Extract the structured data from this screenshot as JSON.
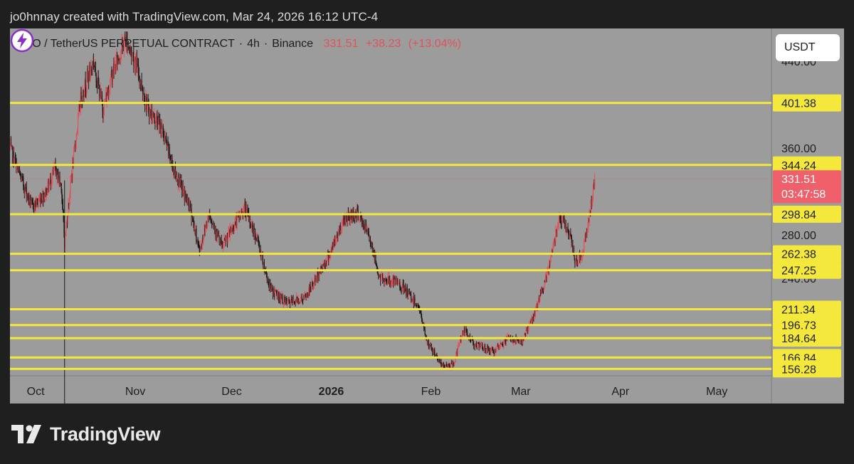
{
  "credit": "jo0hnnay created with TradingView.com, Mar 24, 2026 16:12 UTC-4",
  "legend": {
    "symbol": "TAO / TetherUS PERPETUAL CONTRACT",
    "interval": "4h",
    "exchange": "Binance",
    "last": "331.51",
    "change": "+38.23",
    "change_pct": "(+13.04%)"
  },
  "currency_button": "USDT",
  "brand": {
    "name": "TradingView",
    "logo_icon": "tradingview-logo-icon"
  },
  "countdown": "03:47:58",
  "chart_data": {
    "type": "candlestick",
    "title": "",
    "xlabel": "",
    "ylabel": "",
    "ylim": [
      150,
      470
    ],
    "x_ticks": [
      {
        "label": "Oct",
        "bold": false
      },
      {
        "label": "Nov",
        "bold": false
      },
      {
        "label": "Dec",
        "bold": false
      },
      {
        "label": "2026",
        "bold": true
      },
      {
        "label": "Feb",
        "bold": false
      },
      {
        "label": "Mar",
        "bold": false
      },
      {
        "label": "Apr",
        "bold": false
      },
      {
        "label": "May",
        "bold": false
      }
    ],
    "y_ticks": [
      "440.00",
      "360.00",
      "280.00",
      "240.00"
    ],
    "price_line": {
      "value": 331.51,
      "label": "331.51",
      "color": "#f05a66"
    },
    "horizontal_levels": [
      {
        "value": 401.38,
        "label": "401.38"
      },
      {
        "value": 344.24,
        "label": "344.24"
      },
      {
        "value": 298.84,
        "label": "298.84"
      },
      {
        "value": 262.38,
        "label": "262.38"
      },
      {
        "value": 247.25,
        "label": "247.25"
      },
      {
        "value": 211.34,
        "label": "211.34"
      },
      {
        "value": 196.73,
        "label": "196.73"
      },
      {
        "value": 184.64,
        "label": "184.64"
      },
      {
        "value": 166.84,
        "label": "166.84"
      },
      {
        "value": 156.28,
        "label": "156.28"
      }
    ],
    "colors": {
      "up": "#e0535a",
      "down": "#1a1a1a",
      "level": "#f5e83c",
      "background": "#9c9c9c"
    },
    "series": [
      {
        "price_path": [
          [
            "2025-09-23",
            360
          ],
          [
            "2025-09-26",
            335
          ],
          [
            "2025-09-30",
            305
          ],
          [
            "2025-10-04",
            318
          ],
          [
            "2025-10-07",
            340
          ],
          [
            "2025-10-09",
            325
          ],
          [
            "2025-10-10",
            272
          ],
          [
            "2025-10-12",
            330
          ],
          [
            "2025-10-15",
            405
          ],
          [
            "2025-10-19",
            440
          ],
          [
            "2025-10-22",
            395
          ],
          [
            "2025-10-25",
            430
          ],
          [
            "2025-10-29",
            460
          ],
          [
            "2025-11-01",
            440
          ],
          [
            "2025-11-05",
            395
          ],
          [
            "2025-11-09",
            380
          ],
          [
            "2025-11-13",
            340
          ],
          [
            "2025-11-18",
            305
          ],
          [
            "2025-11-21",
            265
          ],
          [
            "2025-11-24",
            300
          ],
          [
            "2025-11-28",
            268
          ],
          [
            "2025-12-02",
            290
          ],
          [
            "2025-12-05",
            305
          ],
          [
            "2025-12-09",
            275
          ],
          [
            "2025-12-13",
            230
          ],
          [
            "2025-12-18",
            217
          ],
          [
            "2025-12-24",
            222
          ],
          [
            "2026-01-01",
            265
          ],
          [
            "2026-01-05",
            295
          ],
          [
            "2026-01-09",
            300
          ],
          [
            "2026-01-13",
            278
          ],
          [
            "2026-01-16",
            240
          ],
          [
            "2026-01-22",
            235
          ],
          [
            "2026-01-28",
            215
          ],
          [
            "2026-01-31",
            180
          ],
          [
            "2026-02-05",
            158
          ],
          [
            "2026-02-08",
            160
          ],
          [
            "2026-02-11",
            192
          ],
          [
            "2026-02-15",
            178
          ],
          [
            "2026-02-21",
            172
          ],
          [
            "2026-02-25",
            185
          ],
          [
            "2026-03-01",
            180
          ],
          [
            "2026-03-05",
            205
          ],
          [
            "2026-03-09",
            240
          ],
          [
            "2026-03-13",
            298
          ],
          [
            "2026-03-16",
            282
          ],
          [
            "2026-03-18",
            255
          ],
          [
            "2026-03-20",
            262
          ],
          [
            "2026-03-22",
            290
          ],
          [
            "2026-03-24",
            331.51
          ]
        ]
      }
    ]
  }
}
